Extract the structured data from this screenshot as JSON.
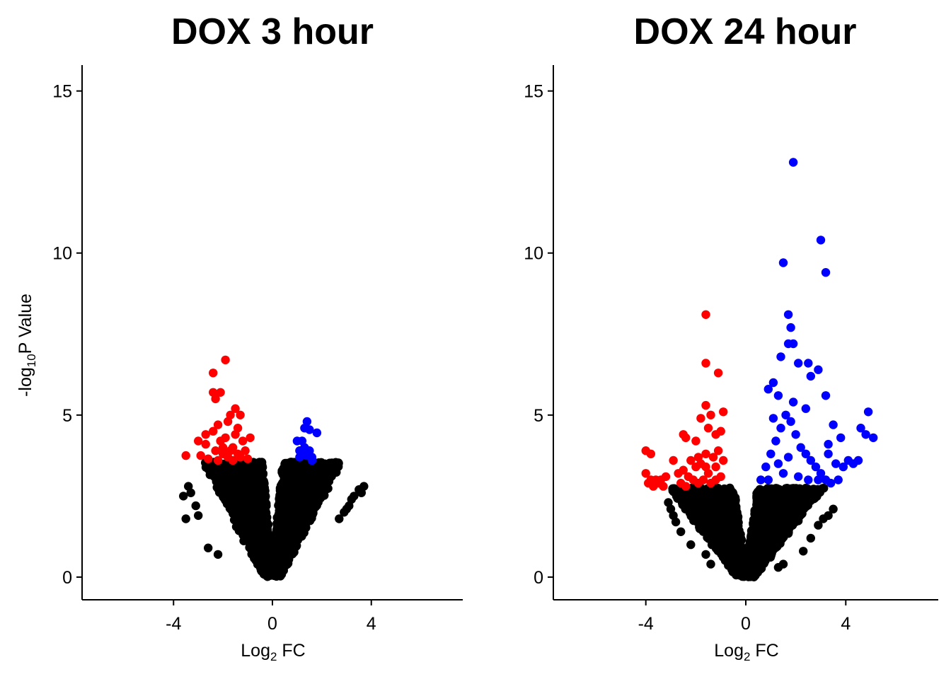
{
  "colors": {
    "background": "#ffffff",
    "up": "#0000ff",
    "down": "#ff0000",
    "ns": "#000000"
  },
  "chart_data": [
    {
      "type": "scatter",
      "title": "DOX 3 hour",
      "xlabel": "Log2 FC",
      "ylabel": "-log10P Value",
      "xlim": [
        -7.7,
        7.7
      ],
      "ylim": [
        -0.7,
        15.8
      ],
      "xticks": [
        -4,
        0,
        4
      ],
      "xtick_labels": [
        "-4",
        "0",
        "4"
      ],
      "yticks": [
        0,
        5,
        10,
        15
      ],
      "ytick_labels": [
        "0",
        "5",
        "10",
        "15"
      ],
      "grid": false,
      "legend": "none",
      "significance_threshold": 3.55,
      "background_cloud": {
        "series": "ns",
        "note": "dense V-shaped cloud of non-significant genes"
      },
      "series": [
        {
          "key": "down",
          "color": "#ff0000",
          "points": [
            [
              -1.9,
              6.7
            ],
            [
              -2.4,
              6.3
            ],
            [
              -2.4,
              5.7
            ],
            [
              -2.1,
              5.7
            ],
            [
              -2.3,
              5.5
            ],
            [
              -1.5,
              5.2
            ],
            [
              -1.7,
              5.0
            ],
            [
              -1.3,
              5.0
            ],
            [
              -1.8,
              4.8
            ],
            [
              -2.2,
              4.7
            ],
            [
              -1.4,
              4.6
            ],
            [
              -2.4,
              4.5
            ],
            [
              -2.7,
              4.4
            ],
            [
              -0.9,
              4.3
            ],
            [
              -3.0,
              4.2
            ],
            [
              -2.7,
              4.1
            ],
            [
              -1.2,
              4.2
            ],
            [
              -2.0,
              4.0
            ],
            [
              -1.6,
              4.0
            ],
            [
              -1.1,
              3.9
            ],
            [
              -2.3,
              3.9
            ],
            [
              -3.5,
              3.75
            ],
            [
              -2.9,
              3.75
            ],
            [
              -1.8,
              3.7
            ],
            [
              -2.0,
              3.8
            ],
            [
              -1.4,
              3.8
            ],
            [
              -1.0,
              3.65
            ],
            [
              -2.6,
              3.65
            ],
            [
              -1.6,
              3.6
            ],
            [
              -2.2,
              3.6
            ],
            [
              -1.3,
              3.7
            ],
            [
              -1.9,
              4.3
            ],
            [
              -1.5,
              4.4
            ],
            [
              -2.1,
              4.2
            ],
            [
              -1.7,
              3.9
            ]
          ]
        },
        {
          "key": "up",
          "color": "#0000ff",
          "points": [
            [
              1.4,
              4.8
            ],
            [
              1.3,
              4.6
            ],
            [
              1.5,
              4.55
            ],
            [
              1.8,
              4.45
            ],
            [
              1.0,
              4.2
            ],
            [
              1.2,
              4.2
            ],
            [
              1.3,
              4.0
            ],
            [
              1.1,
              3.9
            ],
            [
              1.5,
              3.9
            ],
            [
              1.4,
              3.75
            ],
            [
              1.6,
              3.7
            ],
            [
              1.1,
              3.7
            ],
            [
              1.6,
              3.6
            ],
            [
              1.25,
              3.8
            ]
          ]
        },
        {
          "key": "ns",
          "color": "#000000",
          "points": [
            [
              -3.6,
              2.5
            ],
            [
              -3.4,
              2.8
            ],
            [
              -3.3,
              2.6
            ],
            [
              -3.5,
              1.8
            ],
            [
              -3.1,
              2.2
            ],
            [
              -2.6,
              0.9
            ],
            [
              -2.2,
              0.7
            ],
            [
              -3.0,
              1.9
            ],
            [
              3.7,
              2.8
            ],
            [
              3.5,
              2.7
            ],
            [
              3.6,
              2.6
            ],
            [
              3.3,
              2.5
            ],
            [
              3.2,
              2.4
            ],
            [
              3.1,
              2.2
            ],
            [
              2.9,
              2.0
            ],
            [
              2.7,
              1.8
            ],
            [
              3.0,
              2.1
            ]
          ]
        }
      ]
    },
    {
      "type": "scatter",
      "title": "DOX 24 hour",
      "xlabel": "Log2 FC",
      "ylabel": "",
      "xlim": [
        -7.7,
        7.7
      ],
      "ylim": [
        -0.7,
        15.8
      ],
      "xticks": [
        -4,
        0,
        4
      ],
      "xtick_labels": [
        "-4",
        "0",
        "4"
      ],
      "yticks": [
        0,
        5,
        10,
        15
      ],
      "ytick_labels": [
        "0",
        "5",
        "10",
        "15"
      ],
      "grid": false,
      "legend": "none",
      "significance_threshold": 2.75,
      "background_cloud": {
        "series": "ns",
        "note": "dense V-shaped cloud of non-significant genes"
      },
      "series": [
        {
          "key": "down",
          "color": "#ff0000",
          "points": [
            [
              -1.6,
              8.1
            ],
            [
              -1.6,
              6.6
            ],
            [
              -1.1,
              6.3
            ],
            [
              -0.9,
              5.1
            ],
            [
              -1.6,
              5.3
            ],
            [
              -1.4,
              5.0
            ],
            [
              -1.8,
              4.9
            ],
            [
              -1.5,
              4.6
            ],
            [
              -1.2,
              4.4
            ],
            [
              -2.4,
              4.3
            ],
            [
              -2.5,
              4.4
            ],
            [
              -1.0,
              4.5
            ],
            [
              -2.0,
              4.2
            ],
            [
              -2.9,
              3.6
            ],
            [
              -4.0,
              3.9
            ],
            [
              -3.8,
              3.8
            ],
            [
              -4.0,
              3.2
            ],
            [
              -3.8,
              3.0
            ],
            [
              -3.6,
              3.0
            ],
            [
              -3.4,
              3.0
            ],
            [
              -3.2,
              3.1
            ],
            [
              -3.7,
              2.8
            ],
            [
              -3.5,
              2.9
            ],
            [
              -3.3,
              2.8
            ],
            [
              -3.9,
              2.9
            ],
            [
              -2.7,
              3.2
            ],
            [
              -2.5,
              3.3
            ],
            [
              -2.3,
              3.1
            ],
            [
              -2.1,
              3.0
            ],
            [
              -1.9,
              2.9
            ],
            [
              -2.2,
              3.6
            ],
            [
              -1.6,
              3.8
            ],
            [
              -1.3,
              3.7
            ],
            [
              -1.8,
              3.5
            ],
            [
              -1.2,
              3.4
            ],
            [
              -2.0,
              3.4
            ],
            [
              -1.5,
              3.2
            ],
            [
              -1.0,
              3.1
            ],
            [
              -1.7,
              3.0
            ],
            [
              -1.4,
              2.9
            ],
            [
              -0.9,
              3.6
            ],
            [
              -1.1,
              3.9
            ],
            [
              -2.6,
              2.9
            ],
            [
              -2.4,
              2.8
            ],
            [
              -1.2,
              3.0
            ],
            [
              -1.9,
              3.7
            ],
            [
              -1.6,
              3.4
            ]
          ]
        },
        {
          "key": "up",
          "color": "#0000ff",
          "points": [
            [
              1.9,
              12.8
            ],
            [
              3.0,
              10.4
            ],
            [
              3.2,
              9.4
            ],
            [
              1.5,
              9.7
            ],
            [
              1.7,
              8.1
            ],
            [
              1.8,
              7.7
            ],
            [
              1.7,
              7.2
            ],
            [
              1.9,
              7.2
            ],
            [
              1.4,
              6.8
            ],
            [
              2.1,
              6.6
            ],
            [
              2.5,
              6.6
            ],
            [
              2.9,
              6.4
            ],
            [
              2.6,
              6.2
            ],
            [
              1.1,
              6.0
            ],
            [
              0.9,
              5.8
            ],
            [
              1.3,
              5.6
            ],
            [
              3.2,
              5.6
            ],
            [
              1.9,
              5.4
            ],
            [
              2.4,
              5.2
            ],
            [
              3.5,
              4.7
            ],
            [
              3.8,
              4.3
            ],
            [
              3.3,
              4.1
            ],
            [
              4.9,
              5.1
            ],
            [
              4.6,
              4.6
            ],
            [
              4.8,
              4.4
            ],
            [
              5.1,
              4.3
            ],
            [
              3.3,
              3.8
            ],
            [
              3.6,
              3.5
            ],
            [
              3.9,
              3.4
            ],
            [
              4.1,
              3.6
            ],
            [
              4.3,
              3.5
            ],
            [
              4.5,
              3.6
            ],
            [
              3.7,
              3.0
            ],
            [
              3.4,
              2.9
            ],
            [
              3.2,
              3.0
            ],
            [
              3.0,
              3.2
            ],
            [
              2.8,
              3.4
            ],
            [
              2.6,
              3.6
            ],
            [
              2.4,
              3.8
            ],
            [
              2.2,
              4.0
            ],
            [
              2.0,
              4.4
            ],
            [
              1.8,
              4.8
            ],
            [
              1.6,
              5.0
            ],
            [
              1.4,
              4.6
            ],
            [
              1.2,
              4.2
            ],
            [
              1.0,
              3.8
            ],
            [
              0.8,
              3.4
            ],
            [
              0.6,
              3.0
            ],
            [
              1.5,
              3.2
            ],
            [
              2.1,
              3.1
            ],
            [
              1.7,
              3.7
            ],
            [
              1.3,
              3.5
            ],
            [
              0.9,
              3.0
            ],
            [
              2.5,
              3.0
            ],
            [
              2.9,
              3.0
            ],
            [
              1.1,
              4.9
            ]
          ]
        },
        {
          "key": "ns",
          "color": "#000000",
          "points": [
            [
              -3.1,
              2.3
            ],
            [
              -3.0,
              2.1
            ],
            [
              -2.9,
              1.9
            ],
            [
              -2.8,
              1.7
            ],
            [
              -2.6,
              1.4
            ],
            [
              -2.2,
              1.0
            ],
            [
              -1.6,
              0.7
            ],
            [
              -1.4,
              0.4
            ],
            [
              3.5,
              2.1
            ],
            [
              3.3,
              1.9
            ],
            [
              3.1,
              1.8
            ],
            [
              2.9,
              1.6
            ],
            [
              2.6,
              1.2
            ],
            [
              2.3,
              0.8
            ],
            [
              1.5,
              0.4
            ],
            [
              1.3,
              0.3
            ]
          ]
        }
      ]
    }
  ]
}
